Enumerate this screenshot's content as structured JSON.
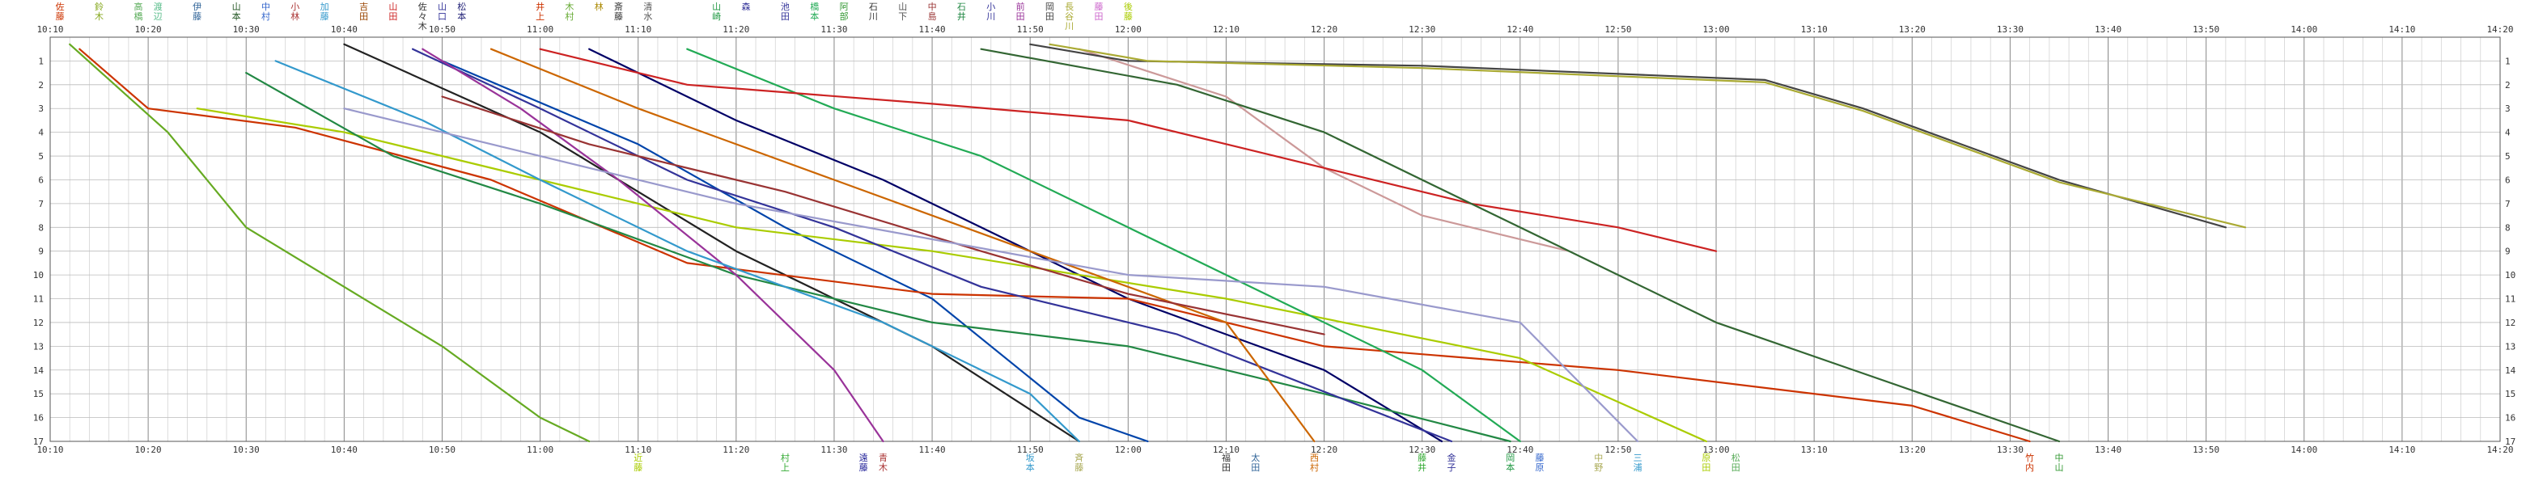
{
  "chart_data": {
    "type": "line",
    "x_unit": "time (HH:MM)",
    "x_range": [
      "10:10",
      "14:20"
    ],
    "x_major_ticks": [
      "10:10",
      "10:20",
      "10:30",
      "10:40",
      "10:50",
      "11:00",
      "11:10",
      "11:20",
      "11:30",
      "11:40",
      "11:50",
      "12:00",
      "12:10",
      "12:20",
      "12:30",
      "12:40",
      "12:50",
      "13:00",
      "13:10",
      "13:20",
      "13:30",
      "13:40",
      "13:50",
      "14:00",
      "14:10",
      "14:20"
    ],
    "y_unit": "station / point number",
    "y_range": [
      0,
      17
    ],
    "y_inverted": true,
    "y_tick_labels": [
      "1",
      "2",
      "3",
      "4",
      "5",
      "6",
      "7",
      "8",
      "9",
      "10",
      "11",
      "12",
      "13",
      "14",
      "15",
      "16",
      "17"
    ],
    "grid": true,
    "legend": "none",
    "top_labels": [
      {
        "t": "10:11",
        "text": "佐藤",
        "color": "#cc3300"
      },
      {
        "t": "10:15",
        "text": "鈴木",
        "color": "#88aa22"
      },
      {
        "t": "10:19",
        "text": "高橋",
        "color": "#55aa55"
      },
      {
        "t": "10:21",
        "text": "渡辺",
        "color": "#55bb88"
      },
      {
        "t": "10:25",
        "text": "伊藤",
        "color": "#336699"
      },
      {
        "t": "10:29",
        "text": "山本",
        "color": "#225522"
      },
      {
        "t": "10:32",
        "text": "中村",
        "color": "#3366cc"
      },
      {
        "t": "10:35",
        "text": "小林",
        "color": "#aa3333"
      },
      {
        "t": "10:38",
        "text": "加藤",
        "color": "#3399cc"
      },
      {
        "t": "10:42",
        "text": "吉田",
        "color": "#994400"
      },
      {
        "t": "10:45",
        "text": "山田",
        "color": "#cc2222"
      },
      {
        "t": "10:48",
        "text": "佐々木",
        "color": "#333333"
      },
      {
        "t": "10:50",
        "text": "山口",
        "color": "#333399"
      },
      {
        "t": "10:52",
        "text": "松本",
        "color": "#222277"
      },
      {
        "t": "11:00",
        "text": "井上",
        "color": "#cc3300"
      },
      {
        "t": "11:03",
        "text": "木村",
        "color": "#66aa33"
      },
      {
        "t": "11:06",
        "text": "林",
        "color": "#aa8800"
      },
      {
        "t": "11:08",
        "text": "斎藤",
        "color": "#333333"
      },
      {
        "t": "11:11",
        "text": "清水",
        "color": "#555555"
      },
      {
        "t": "11:18",
        "text": "山崎",
        "color": "#229944"
      },
      {
        "t": "11:21",
        "text": "森",
        "color": "#333399"
      },
      {
        "t": "11:25",
        "text": "池田",
        "color": "#333399"
      },
      {
        "t": "11:28",
        "text": "橋本",
        "color": "#22aa55"
      },
      {
        "t": "11:31",
        "text": "阿部",
        "color": "#339933"
      },
      {
        "t": "11:34",
        "text": "石川",
        "color": "#333333"
      },
      {
        "t": "11:37",
        "text": "山下",
        "color": "#555555"
      },
      {
        "t": "11:40",
        "text": "中島",
        "color": "#993333"
      },
      {
        "t": "11:43",
        "text": "石井",
        "color": "#228844"
      },
      {
        "t": "11:46",
        "text": "小川",
        "color": "#333399"
      },
      {
        "t": "11:49",
        "text": "前田",
        "color": "#993399"
      },
      {
        "t": "11:52",
        "text": "岡田",
        "color": "#444444"
      },
      {
        "t": "11:54",
        "text": "長谷川",
        "color": "#aaaa33"
      },
      {
        "t": "11:57",
        "text": "藤田",
        "color": "#cc66cc"
      },
      {
        "t": "12:00",
        "text": "後藤",
        "color": "#aacc00"
      }
    ],
    "bottom_labels": [
      {
        "t": "11:10",
        "text": "近藤",
        "color": "#aacc00"
      },
      {
        "t": "11:25",
        "text": "村上",
        "color": "#33aa33"
      },
      {
        "t": "11:33",
        "text": "遠藤",
        "color": "#222299"
      },
      {
        "t": "11:35",
        "text": "青木",
        "color": "#aa3333"
      },
      {
        "t": "11:50",
        "text": "坂本",
        "color": "#3399cc"
      },
      {
        "t": "11:55",
        "text": "斉藤",
        "color": "#aaaa55"
      },
      {
        "t": "12:10",
        "text": "福田",
        "color": "#333333"
      },
      {
        "t": "12:13",
        "text": "太田",
        "color": "#336699"
      },
      {
        "t": "12:19",
        "text": "西村",
        "color": "#cc6600"
      },
      {
        "t": "12:30",
        "text": "藤井",
        "color": "#33aa33"
      },
      {
        "t": "12:33",
        "text": "金子",
        "color": "#333399"
      },
      {
        "t": "12:39",
        "text": "岡本",
        "color": "#229944"
      },
      {
        "t": "12:42",
        "text": "藤原",
        "color": "#3366cc"
      },
      {
        "t": "12:48",
        "text": "中野",
        "color": "#aaaa55"
      },
      {
        "t": "12:52",
        "text": "三浦",
        "color": "#3399cc"
      },
      {
        "t": "12:59",
        "text": "原田",
        "color": "#aacc00"
      },
      {
        "t": "13:02",
        "text": "松田",
        "color": "#55aa55"
      },
      {
        "t": "13:32",
        "text": "竹内",
        "color": "#cc3300"
      },
      {
        "t": "13:35",
        "text": "中山",
        "color": "#339933"
      }
    ],
    "series": [
      {
        "color": "#222222",
        "points": [
          [
            "10:40",
            0.3
          ],
          [
            "11:00",
            4
          ],
          [
            "11:20",
            9
          ],
          [
            "11:40",
            13
          ],
          [
            "11:55",
            17
          ]
        ]
      },
      {
        "color": "#0044aa",
        "points": [
          [
            "10:50",
            1
          ],
          [
            "11:10",
            4.5
          ],
          [
            "11:25",
            8
          ],
          [
            "11:40",
            11
          ],
          [
            "11:55",
            16
          ],
          [
            "12:02",
            17
          ]
        ]
      },
      {
        "color": "#000066",
        "points": [
          [
            "11:05",
            0.5
          ],
          [
            "11:20",
            3.5
          ],
          [
            "11:35",
            6
          ],
          [
            "11:45",
            8
          ],
          [
            "12:00",
            11
          ],
          [
            "12:20",
            14
          ],
          [
            "12:32",
            17
          ]
        ]
      },
      {
        "color": "#66aa22",
        "points": [
          [
            "10:12",
            0.3
          ],
          [
            "10:22",
            4
          ],
          [
            "10:30",
            8
          ],
          [
            "10:50",
            13
          ],
          [
            "11:00",
            16
          ],
          [
            "11:05",
            17
          ]
        ]
      },
      {
        "color": "#cc3300",
        "points": [
          [
            "10:13",
            0.5
          ],
          [
            "10:20",
            3
          ],
          [
            "10:35",
            3.8
          ],
          [
            "10:55",
            6
          ],
          [
            "11:15",
            9.5
          ],
          [
            "11:40",
            10.8
          ],
          [
            "12:00",
            11
          ],
          [
            "12:20",
            13
          ],
          [
            "12:50",
            14
          ],
          [
            "13:20",
            15.5
          ],
          [
            "13:32",
            17
          ]
        ]
      },
      {
        "color": "#aacc00",
        "points": [
          [
            "10:25",
            3
          ],
          [
            "10:40",
            4
          ],
          [
            "11:00",
            6
          ],
          [
            "11:20",
            8
          ],
          [
            "11:40",
            9
          ],
          [
            "12:10",
            11
          ],
          [
            "12:40",
            13.5
          ],
          [
            "12:59",
            17
          ]
        ]
      },
      {
        "color": "#228844",
        "points": [
          [
            "10:30",
            1.5
          ],
          [
            "10:45",
            5
          ],
          [
            "11:00",
            7
          ],
          [
            "11:20",
            10
          ],
          [
            "11:40",
            12
          ],
          [
            "12:00",
            13
          ],
          [
            "12:20",
            15
          ],
          [
            "12:39",
            17
          ]
        ]
      },
      {
        "color": "#333399",
        "points": [
          [
            "10:47",
            0.5
          ],
          [
            "11:00",
            3
          ],
          [
            "11:15",
            6
          ],
          [
            "11:30",
            8
          ],
          [
            "11:45",
            10.5
          ],
          [
            "12:05",
            12.5
          ],
          [
            "12:33",
            17
          ]
        ]
      },
      {
        "color": "#993399",
        "points": [
          [
            "10:48",
            0.5
          ],
          [
            "10:58",
            3
          ],
          [
            "11:08",
            6
          ],
          [
            "11:20",
            10
          ],
          [
            "11:30",
            14
          ],
          [
            "11:35",
            17
          ]
        ]
      },
      {
        "color": "#3399cc",
        "points": [
          [
            "10:33",
            1
          ],
          [
            "10:48",
            3.5
          ],
          [
            "11:00",
            6
          ],
          [
            "11:15",
            9
          ],
          [
            "11:35",
            12
          ],
          [
            "11:50",
            15
          ],
          [
            "11:55",
            17
          ]
        ]
      },
      {
        "color": "#cc6600",
        "points": [
          [
            "10:55",
            0.5
          ],
          [
            "11:10",
            3
          ],
          [
            "11:30",
            6
          ],
          [
            "11:50",
            9
          ],
          [
            "12:10",
            12
          ],
          [
            "12:19",
            17
          ]
        ]
      },
      {
        "color": "#22aa55",
        "points": [
          [
            "11:15",
            0.5
          ],
          [
            "11:30",
            3
          ],
          [
            "11:45",
            5
          ],
          [
            "12:00",
            8
          ],
          [
            "12:15",
            11
          ],
          [
            "12:30",
            14
          ],
          [
            "12:40",
            17
          ]
        ]
      },
      {
        "color": "#993333",
        "points": [
          [
            "10:50",
            2.5
          ],
          [
            "11:05",
            4.5
          ],
          [
            "11:25",
            6.5
          ],
          [
            "11:45",
            9
          ],
          [
            "12:00",
            10.8
          ],
          [
            "12:20",
            12.5
          ]
        ]
      },
      {
        "color": "#9999cc",
        "points": [
          [
            "10:40",
            3
          ],
          [
            "11:00",
            5
          ],
          [
            "11:20",
            7
          ],
          [
            "11:40",
            8.5
          ],
          [
            "12:00",
            10
          ],
          [
            "12:20",
            10.5
          ],
          [
            "12:40",
            12
          ],
          [
            "12:52",
            17
          ]
        ]
      },
      {
        "color": "#cc9999",
        "points": [
          [
            "11:55",
            0.5
          ],
          [
            "12:10",
            2.5
          ],
          [
            "12:20",
            5.5
          ],
          [
            "12:30",
            7.5
          ],
          [
            "12:45",
            9
          ]
        ]
      },
      {
        "color": "#cc2222",
        "points": [
          [
            "11:00",
            0.5
          ],
          [
            "11:15",
            2
          ],
          [
            "11:40",
            2.8
          ],
          [
            "12:00",
            3.5
          ],
          [
            "12:20",
            5.5
          ],
          [
            "12:35",
            7
          ],
          [
            "12:50",
            8
          ],
          [
            "13:00",
            9
          ]
        ]
      },
      {
        "color": "#444444",
        "points": [
          [
            "11:50",
            0.3
          ],
          [
            "12:00",
            1
          ],
          [
            "12:30",
            1.2
          ],
          [
            "13:05",
            1.8
          ],
          [
            "13:15",
            3
          ],
          [
            "13:25",
            4.5
          ],
          [
            "13:35",
            6
          ],
          [
            "13:52",
            8
          ]
        ]
      },
      {
        "color": "#aaaa33",
        "points": [
          [
            "11:52",
            0.3
          ],
          [
            "12:02",
            1
          ],
          [
            "12:30",
            1.3
          ],
          [
            "13:05",
            1.9
          ],
          [
            "13:15",
            3.1
          ],
          [
            "13:25",
            4.6
          ],
          [
            "13:35",
            6.1
          ],
          [
            "13:54",
            8
          ]
        ]
      },
      {
        "color": "#336633",
        "points": [
          [
            "11:45",
            0.5
          ],
          [
            "12:05",
            2
          ],
          [
            "12:20",
            4
          ],
          [
            "12:35",
            7
          ],
          [
            "12:50",
            10
          ],
          [
            "13:00",
            12
          ],
          [
            "13:35",
            17
          ]
        ]
      }
    ]
  }
}
